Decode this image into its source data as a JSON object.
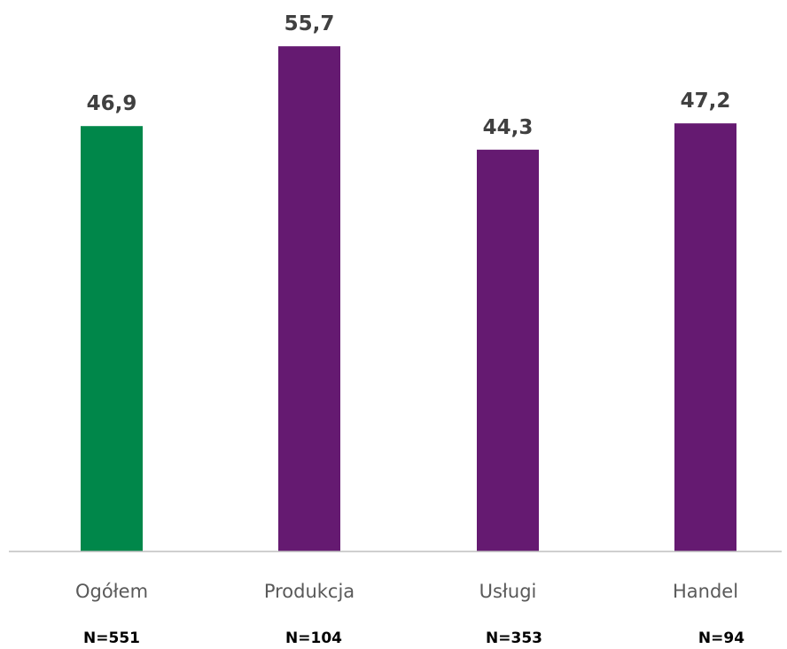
{
  "chart_data": {
    "type": "bar",
    "categories": [
      "Ogółem",
      "Produkcja",
      "Usługi",
      "Handel"
    ],
    "values": [
      46.9,
      55.7,
      44.3,
      47.2
    ],
    "value_labels": [
      "46,9",
      "55,7",
      "44,3",
      "47,2"
    ],
    "sample_sizes": [
      "N=551",
      "N=104",
      "N=353",
      "N=94"
    ],
    "bar_colors": [
      "#00874A",
      "#651A71",
      "#651A71",
      "#651A71"
    ],
    "axis_color": "#BFBFBF",
    "title": "",
    "xlabel": "",
    "ylabel": "",
    "ylim": [
      0,
      57.4
    ],
    "grid": false,
    "legend": "none"
  }
}
